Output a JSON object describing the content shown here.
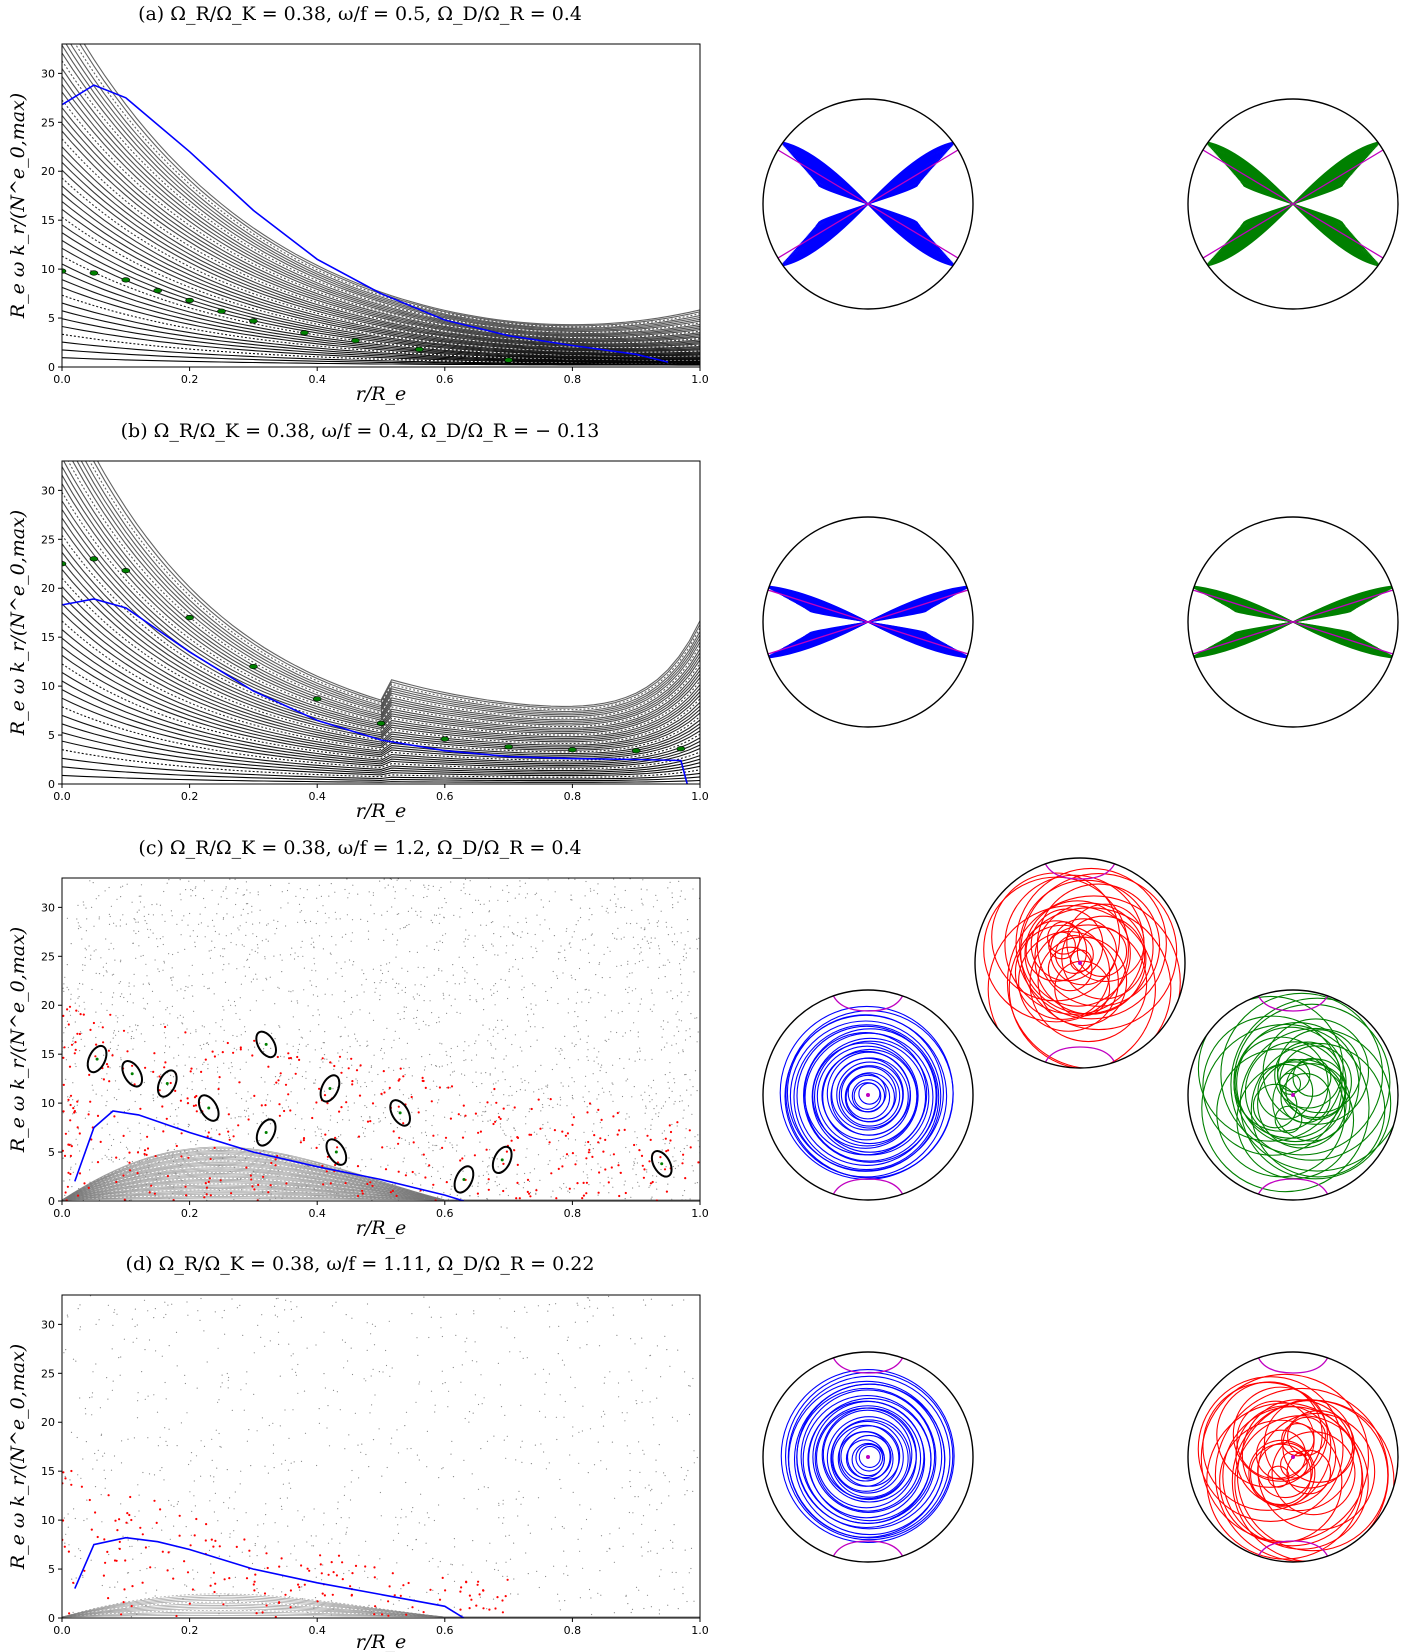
{
  "chart_data": [
    {
      "type": "scatter",
      "panel": "a",
      "title": "(a)   Ω_R/Ω_K = 0.38,  ω/f = 0.5,  Ω_D/Ω_R = 0.4",
      "xlabel": "r/R_e",
      "ylabel": "R_e ω k_r/(N^e_0,max)",
      "xlim": [
        0,
        1.0
      ],
      "ylim": [
        0,
        33
      ],
      "xticks": [
        "0.0",
        "0.2",
        "0.4",
        "0.6",
        "0.8",
        "1.0"
      ],
      "yticks": [
        "0",
        "5",
        "10",
        "15",
        "20",
        "25",
        "30"
      ],
      "regime": "regular",
      "series": [
        {
          "color": "#0000ff",
          "x": [
            0.0,
            0.05,
            0.1,
            0.2,
            0.3,
            0.4,
            0.5,
            0.6,
            0.7,
            0.8,
            0.9,
            0.95
          ],
          "y": [
            26.8,
            28.8,
            27.5,
            22.0,
            16.0,
            11.0,
            7.5,
            4.8,
            3.2,
            2.2,
            1.3,
            0.5
          ]
        },
        {
          "color": "#008000",
          "x": [
            0.0,
            0.05,
            0.1,
            0.15,
            0.2,
            0.25,
            0.3,
            0.38,
            0.46,
            0.56,
            0.7
          ],
          "y": [
            9.8,
            9.6,
            8.9,
            7.8,
            6.8,
            5.7,
            4.7,
            3.5,
            2.7,
            1.8,
            0.7
          ]
        }
      ],
      "orbit_plots": [
        {
          "color": "#0000ff",
          "shape": "x-shaped"
        },
        {
          "color": "#008000",
          "shape": "x-shaped"
        }
      ]
    },
    {
      "type": "scatter",
      "panel": "b",
      "title": "(b)   Ω_R/Ω_K = 0.38,  ω/f = 0.4,  Ω_D/Ω_R = − 0.13",
      "xlabel": "r/R_e",
      "ylabel": "R_e ω k_r/(N^e_0,max)",
      "xlim": [
        0,
        1.0
      ],
      "ylim": [
        0,
        33
      ],
      "xticks": [
        "0.0",
        "0.2",
        "0.4",
        "0.6",
        "0.8",
        "1.0"
      ],
      "yticks": [
        "0",
        "5",
        "10",
        "15",
        "20",
        "25",
        "30"
      ],
      "regime": "regular",
      "series": [
        {
          "color": "#0000ff",
          "x": [
            0.0,
            0.05,
            0.1,
            0.2,
            0.3,
            0.4,
            0.5,
            0.6,
            0.7,
            0.8,
            0.9,
            0.97,
            0.98
          ],
          "y": [
            18.3,
            18.9,
            18.0,
            13.5,
            9.5,
            6.5,
            4.5,
            3.4,
            2.8,
            2.6,
            2.5,
            2.4,
            0.0
          ]
        },
        {
          "color": "#008000",
          "x": [
            0.0,
            0.05,
            0.1,
            0.2,
            0.3,
            0.4,
            0.5,
            0.6,
            0.7,
            0.8,
            0.9,
            0.97
          ],
          "y": [
            22.5,
            23.0,
            21.8,
            17.0,
            12.0,
            8.7,
            6.2,
            4.6,
            3.8,
            3.5,
            3.4,
            3.6
          ]
        }
      ],
      "orbit_plots": [
        {
          "color": "#0000ff",
          "shape": "bow-tie"
        },
        {
          "color": "#008000",
          "shape": "bow-tie"
        }
      ]
    },
    {
      "type": "scatter",
      "panel": "c",
      "title": "(c)   Ω_R/Ω_K = 0.38,  ω/f = 1.2,  Ω_D/Ω_R = 0.4",
      "xlabel": "r/R_e",
      "ylabel": "R_e ω k_r/(N^e_0,max)",
      "xlim": [
        0,
        1.0
      ],
      "ylim": [
        0,
        33
      ],
      "xticks": [
        "0.0",
        "0.2",
        "0.4",
        "0.6",
        "0.8",
        "1.0"
      ],
      "yticks": [
        "0",
        "5",
        "10",
        "15",
        "20",
        "25",
        "30"
      ],
      "regime": "mixed",
      "series": [
        {
          "color": "#0000ff",
          "x": [
            0.02,
            0.05,
            0.08,
            0.12,
            0.2,
            0.3,
            0.4,
            0.5,
            0.6,
            0.63
          ],
          "y": [
            2.0,
            7.5,
            9.2,
            8.8,
            7.0,
            5.0,
            3.5,
            2.2,
            0.6,
            0.0
          ]
        }
      ],
      "islands": [
        {
          "x": 0.055,
          "y": 14.5
        },
        {
          "x": 0.11,
          "y": 13.0
        },
        {
          "x": 0.165,
          "y": 12.0
        },
        {
          "x": 0.23,
          "y": 9.5
        },
        {
          "x": 0.32,
          "y": 7.0
        },
        {
          "x": 0.43,
          "y": 5.0
        },
        {
          "x": 0.63,
          "y": 2.2
        },
        {
          "x": 0.32,
          "y": 16.0
        },
        {
          "x": 0.42,
          "y": 11.5
        },
        {
          "x": 0.53,
          "y": 9.0
        },
        {
          "x": 0.69,
          "y": 4.2
        },
        {
          "x": 0.94,
          "y": 3.8
        }
      ],
      "orbit_plots": [
        {
          "color": "#0000ff",
          "shape": "rosette"
        },
        {
          "color": "#ff0000",
          "shape": "rosette"
        },
        {
          "color": "#008000",
          "shape": "rosette"
        }
      ]
    },
    {
      "type": "scatter",
      "panel": "d",
      "title": "(d)   Ω_R/Ω_K = 0.38,  ω/f = 1.11,  Ω_D/Ω_R = 0.22",
      "xlabel": "r/R_e",
      "ylabel": "R_e ω k_r/(N^e_0,max)",
      "xlim": [
        0,
        1.0
      ],
      "ylim": [
        0,
        33
      ],
      "xticks": [
        "0.0",
        "0.2",
        "0.4",
        "0.6",
        "0.8",
        "1.0"
      ],
      "yticks": [
        "0",
        "5",
        "10",
        "15",
        "20",
        "25",
        "30"
      ],
      "regime": "chaotic",
      "series": [
        {
          "color": "#0000ff",
          "x": [
            0.02,
            0.05,
            0.1,
            0.15,
            0.2,
            0.3,
            0.4,
            0.5,
            0.6,
            0.63
          ],
          "y": [
            3.0,
            7.5,
            8.2,
            7.8,
            7.0,
            5.0,
            3.6,
            2.4,
            1.2,
            0.0
          ]
        }
      ],
      "orbit_plots": [
        {
          "color": "#0000ff",
          "shape": "rosette"
        },
        {
          "color": "#ff0000",
          "shape": "rosette"
        }
      ]
    }
  ]
}
